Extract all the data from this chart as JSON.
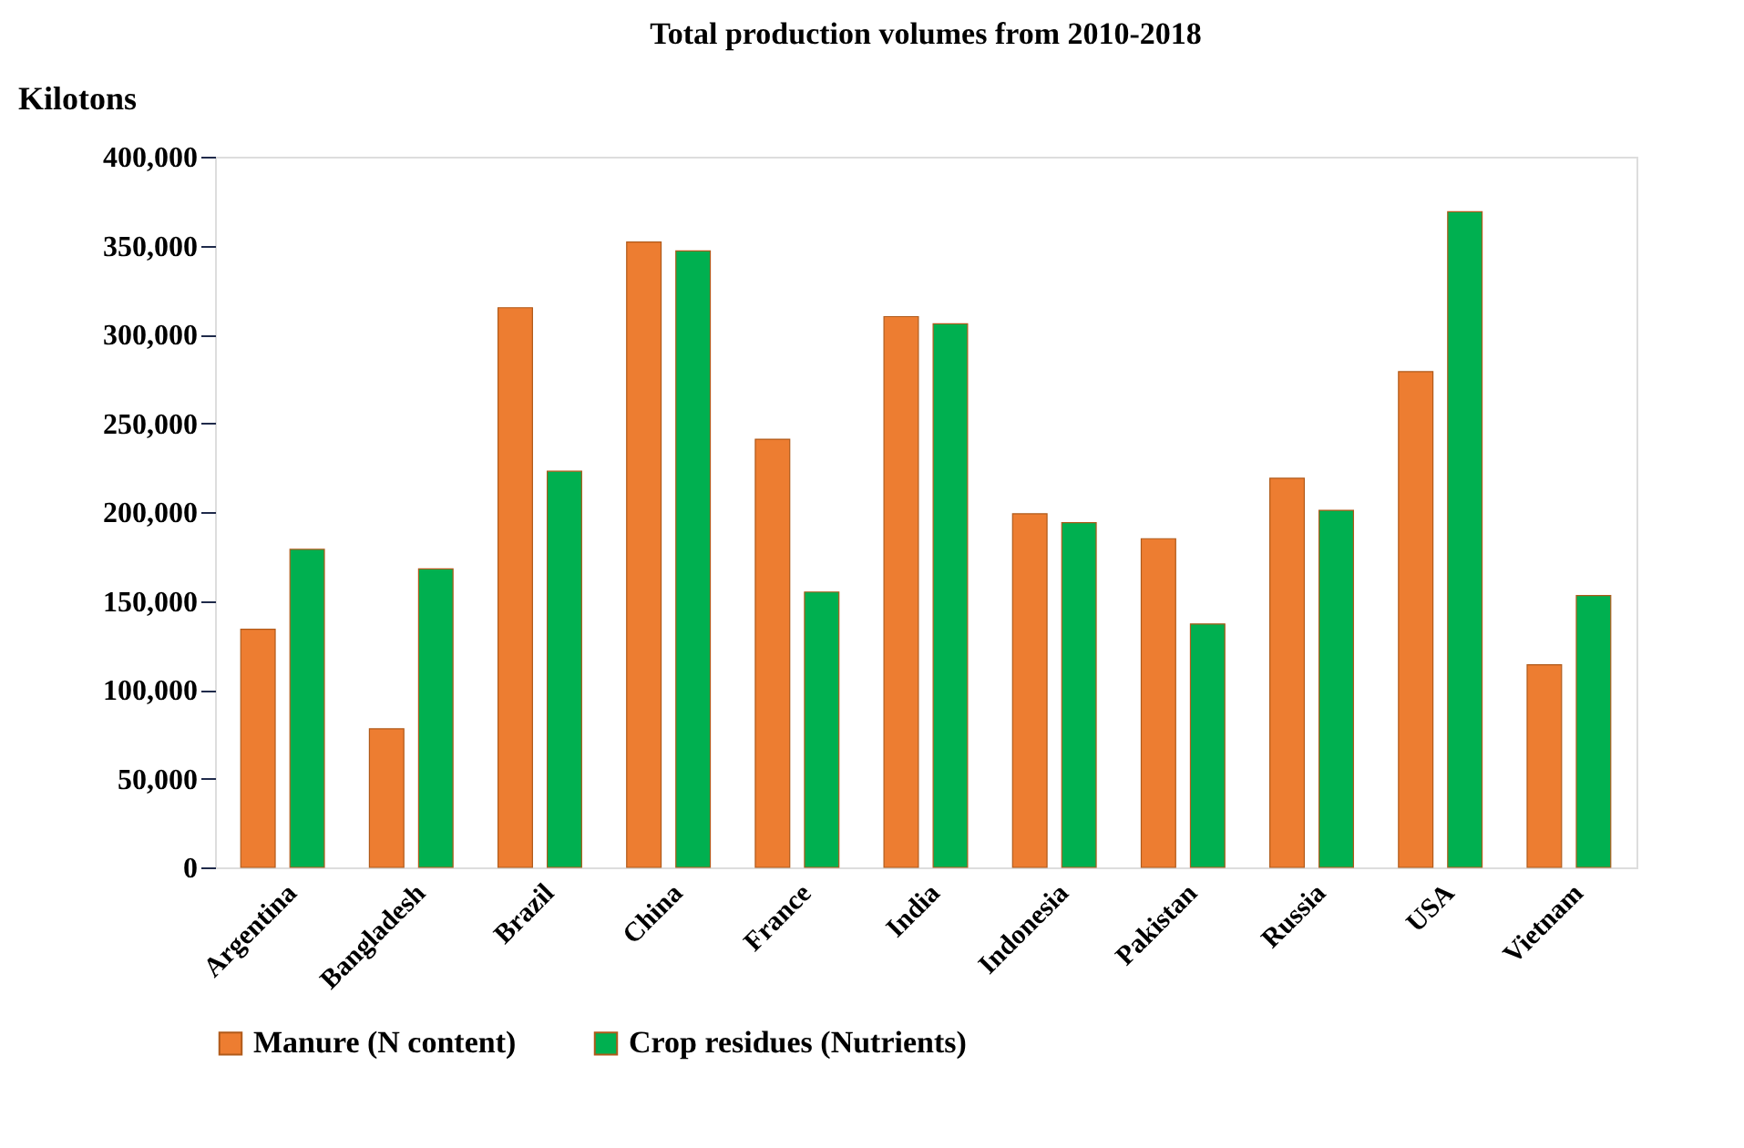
{
  "chart_data": {
    "type": "bar",
    "title": "Total production volumes from 2010-2018",
    "ylabel": "Kilotons",
    "categories": [
      "Argentina",
      "Bangladesh",
      "Brazil",
      "China",
      "France",
      "India",
      "Indonesia",
      "Pakistan",
      "Russia",
      "USA",
      "Vietnam"
    ],
    "series": [
      {
        "name": "Manure (N content)",
        "color": "#ed7d31",
        "values": [
          134000,
          78000,
          315000,
          352000,
          241000,
          310000,
          199000,
          185000,
          219000,
          279000,
          114000
        ]
      },
      {
        "name": "Crop residues (Nutrients)",
        "color": "#00b050",
        "values": [
          179000,
          168000,
          223000,
          347000,
          155000,
          306000,
          194000,
          137000,
          201000,
          369000,
          153000
        ]
      }
    ],
    "ylim": [
      0,
      400000
    ],
    "yticks": [
      0,
      {
        "value": 50000,
        "label": "50,000"
      },
      {
        "value": 100000,
        "label": "100,000"
      },
      {
        "value": 150000,
        "label": "150,000"
      },
      {
        "value": 200000,
        "label": "200,000"
      },
      {
        "value": 250000,
        "label": "250,000"
      },
      {
        "value": 300000,
        "label": "300,000"
      },
      {
        "value": 350000,
        "label": "350,000"
      },
      {
        "value": 400000,
        "label": "400,000"
      }
    ],
    "grid": false,
    "legend": "bottom"
  }
}
